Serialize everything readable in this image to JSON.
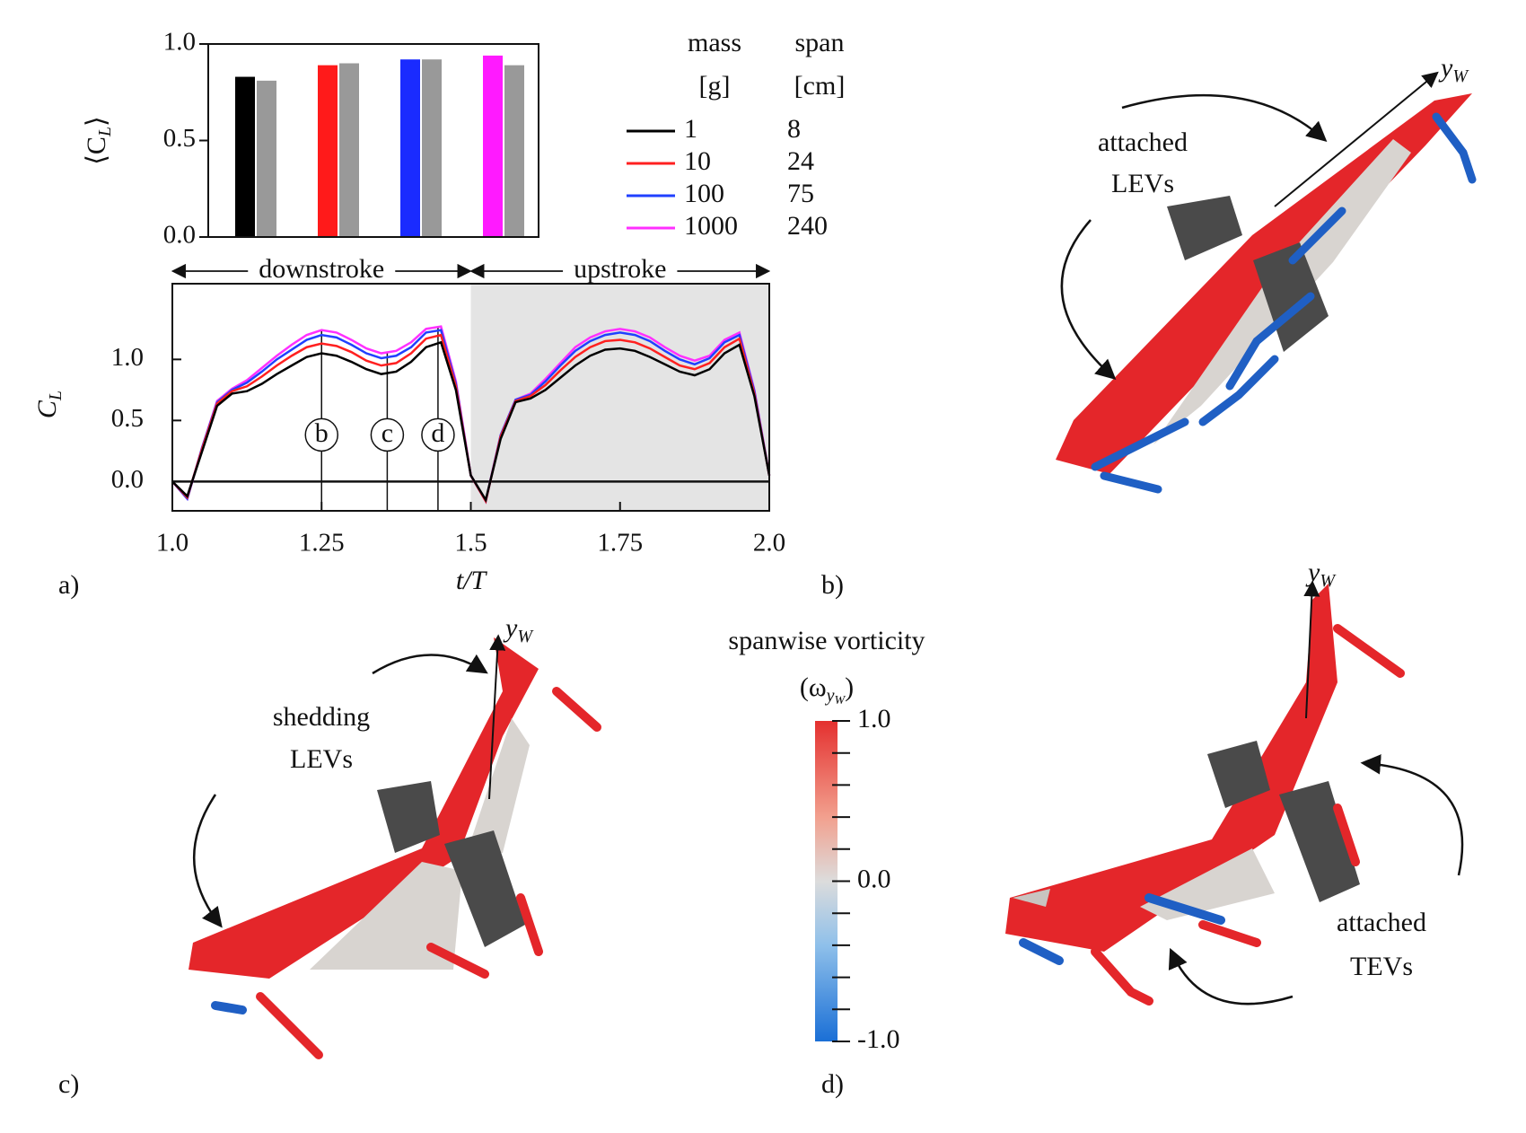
{
  "chart_data": [
    {
      "type": "bar",
      "ylabel": {
        "main": "⟨C",
        "sub": "L",
        "end": "⟩"
      },
      "categories": [
        null,
        null,
        null,
        null
      ],
      "series": [
        {
          "color": [
            "#000000",
            "#ff1a1a",
            "#1a2bff",
            "#ff1aff"
          ],
          "values": [
            0.83,
            0.89,
            0.92,
            0.94
          ]
        },
        {
          "color": "#999999",
          "values": [
            0.81,
            0.9,
            0.92,
            0.89
          ]
        }
      ],
      "ylim": [
        0,
        1
      ],
      "yticks": [
        {
          "value": 0,
          "label": "0.0"
        },
        {
          "value": 0.5,
          "label": "0.5"
        },
        {
          "value": 1,
          "label": "1.0"
        }
      ]
    },
    {
      "type": "line",
      "xlabel": "t/T",
      "ylabel": {
        "main": "C",
        "sub": "L"
      },
      "x": [
        1.0,
        1.025,
        1.05,
        1.075,
        1.1,
        1.125,
        1.15,
        1.175,
        1.2,
        1.225,
        1.25,
        1.275,
        1.3,
        1.325,
        1.35,
        1.375,
        1.4,
        1.425,
        1.45,
        1.475,
        1.5,
        1.525,
        1.55,
        1.575,
        1.6,
        1.625,
        1.65,
        1.675,
        1.7,
        1.725,
        1.75,
        1.775,
        1.8,
        1.825,
        1.85,
        1.875,
        1.9,
        1.925,
        1.95,
        1.975,
        2.0
      ],
      "series": [
        {
          "color": "#ff30ff",
          "values": [
            0.0,
            -0.14,
            0.28,
            0.66,
            0.76,
            0.83,
            0.93,
            1.03,
            1.12,
            1.2,
            1.24,
            1.22,
            1.16,
            1.09,
            1.05,
            1.07,
            1.14,
            1.25,
            1.27,
            0.82,
            0.05,
            -0.16,
            0.38,
            0.67,
            0.72,
            0.84,
            0.97,
            1.1,
            1.18,
            1.23,
            1.25,
            1.23,
            1.18,
            1.1,
            1.03,
            0.99,
            1.03,
            1.16,
            1.22,
            0.75,
            0.05
          ]
        },
        {
          "color": "#2040ff",
          "values": [
            0.0,
            -0.14,
            0.28,
            0.65,
            0.75,
            0.81,
            0.9,
            1.0,
            1.08,
            1.16,
            1.2,
            1.18,
            1.12,
            1.05,
            1.01,
            1.03,
            1.1,
            1.22,
            1.24,
            0.8,
            0.05,
            -0.16,
            0.38,
            0.67,
            0.71,
            0.82,
            0.95,
            1.07,
            1.15,
            1.2,
            1.22,
            1.2,
            1.15,
            1.07,
            1.0,
            0.96,
            1.01,
            1.14,
            1.2,
            0.74,
            0.05
          ]
        },
        {
          "color": "#ff2020",
          "values": [
            0.0,
            -0.13,
            0.27,
            0.64,
            0.74,
            0.78,
            0.86,
            0.95,
            1.03,
            1.1,
            1.13,
            1.11,
            1.06,
            0.99,
            0.95,
            0.97,
            1.05,
            1.17,
            1.2,
            0.78,
            0.05,
            -0.16,
            0.37,
            0.66,
            0.7,
            0.79,
            0.91,
            1.02,
            1.1,
            1.15,
            1.16,
            1.14,
            1.09,
            1.02,
            0.95,
            0.92,
            0.97,
            1.1,
            1.17,
            0.72,
            0.05
          ]
        },
        {
          "color": "#000000",
          "values": [
            0.0,
            -0.12,
            0.25,
            0.62,
            0.72,
            0.74,
            0.8,
            0.88,
            0.95,
            1.02,
            1.05,
            1.03,
            0.98,
            0.92,
            0.88,
            0.9,
            0.98,
            1.1,
            1.14,
            0.75,
            0.05,
            -0.15,
            0.35,
            0.65,
            0.68,
            0.75,
            0.85,
            0.95,
            1.03,
            1.08,
            1.09,
            1.07,
            1.02,
            0.96,
            0.9,
            0.87,
            0.92,
            1.05,
            1.12,
            0.7,
            0.05
          ]
        }
      ],
      "xlim": [
        1,
        2
      ],
      "ylim": [
        -0.24,
        1.62
      ],
      "xticks": [
        {
          "value": 1,
          "label": "1.0"
        },
        1.25,
        1.5,
        1.75,
        {
          "value": 2,
          "label": "2.0"
        }
      ],
      "yticks": [
        {
          "value": 0,
          "label": "0.0"
        },
        {
          "value": 0.5,
          "label": "0.5"
        },
        {
          "value": 1,
          "label": "1.0"
        }
      ],
      "shaded_from": 1.5,
      "phase_labels": [
        "downstroke",
        "upstroke"
      ],
      "markers": [
        {
          "x": 1.25,
          "label": "b"
        },
        {
          "x": 1.36,
          "label": "c"
        },
        {
          "x": 1.445,
          "label": "d"
        }
      ]
    }
  ],
  "legend": {
    "columns": [
      {
        "header": "mass",
        "unit": "[g]"
      },
      {
        "header": "span",
        "unit": "[cm]"
      }
    ],
    "rows": [
      {
        "color": "#000000",
        "cells": [
          1,
          8
        ]
      },
      {
        "color": "#ff2020",
        "cells": [
          10,
          24
        ]
      },
      {
        "color": "#2040ff",
        "cells": [
          100,
          75
        ]
      },
      {
        "color": "#ff30ff",
        "cells": [
          1000,
          240
        ]
      }
    ]
  },
  "panel_labels": [
    "a)",
    "b)",
    "c)",
    "d)"
  ],
  "panels": [
    {
      "annotation": [
        "attached",
        "LEVs"
      ],
      "axis": {
        "main": "y",
        "sub": "W"
      }
    },
    {
      "annotation": [
        "shedding",
        "LEVs"
      ],
      "axis": {
        "main": "y",
        "sub": "W"
      }
    },
    {
      "annotation": [
        "attached",
        "TEVs"
      ],
      "axis": {
        "main": "y",
        "sub": "W"
      }
    }
  ],
  "colorbar": {
    "title": "spanwise vorticity",
    "label": {
      "open": "(ω",
      "sub": "y",
      "subsub": "W",
      "close": ")"
    },
    "lim": [
      -1,
      1
    ],
    "ticks": [
      {
        "value": 1,
        "label": "1.0"
      },
      {
        "value": 0,
        "label": "0.0"
      },
      {
        "value": -1,
        "label": "-1.0"
      }
    ],
    "minor_ticks": [
      0.8,
      0.6,
      0.4,
      0.2,
      -0.2,
      -0.4,
      -0.6,
      -0.8
    ]
  }
}
